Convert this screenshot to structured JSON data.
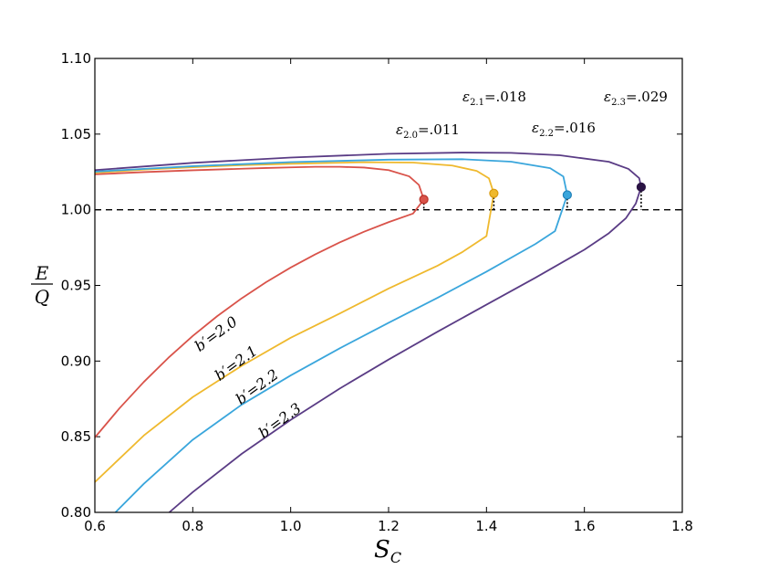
{
  "chart_data": {
    "type": "line",
    "title": "",
    "xlabel": "S",
    "xlabel_sub": "C",
    "ylabel_num": "E",
    "ylabel_den": "Q",
    "xlim": [
      0.6,
      1.8
    ],
    "ylim": [
      0.8,
      1.1
    ],
    "xticks": [
      "0.6",
      "0.8",
      "1.0",
      "1.2",
      "1.4",
      "1.6",
      "1.8"
    ],
    "yticks": [
      "0.80",
      "0.85",
      "0.90",
      "0.95",
      "1.00",
      "1.05",
      "1.10"
    ],
    "reference_line": {
      "y": 1.0,
      "style": "dashed",
      "color": "#000000"
    },
    "series": [
      {
        "name": "b′=2.0",
        "color": "#d9534a",
        "label_text": "b′=2.0",
        "eps_main": "ε",
        "eps_sub": "2.0",
        "eps_value": "=.011",
        "marker": [
          1.272,
          1.0068
        ],
        "x": [
          0.6,
          0.65,
          0.7,
          0.75,
          0.8,
          0.85,
          0.9,
          0.95,
          1.0,
          1.05,
          1.1,
          1.15,
          1.2,
          1.25,
          1.272,
          1.262,
          1.242,
          1.2,
          1.15,
          1.1,
          1.05,
          1.0,
          0.95,
          0.9,
          0.8,
          0.7,
          0.6
        ],
        "y": [
          0.8495,
          0.8687,
          0.8862,
          0.9021,
          0.9166,
          0.9297,
          0.9415,
          0.9522,
          0.9618,
          0.9705,
          0.9784,
          0.9855,
          0.9918,
          0.9975,
          1.0068,
          1.0164,
          1.0221,
          1.0262,
          1.0279,
          1.0284,
          1.0284,
          1.028,
          1.0276,
          1.0271,
          1.0261,
          1.0249,
          1.0234
        ]
      },
      {
        "name": "b′=2.1",
        "color": "#efb92e",
        "label_text": "b′=2.1",
        "eps_main": "ε",
        "eps_sub": "2.1",
        "eps_value": "=.018",
        "marker": [
          1.415,
          1.0108
        ],
        "x": [
          0.6,
          0.7,
          0.8,
          0.9,
          1.0,
          1.1,
          1.2,
          1.3,
          1.35,
          1.4,
          1.415,
          1.405,
          1.38,
          1.33,
          1.25,
          1.15,
          1.0,
          0.9,
          0.8,
          0.7,
          0.6
        ],
        "y": [
          0.82,
          0.8508,
          0.8762,
          0.8969,
          0.9154,
          0.9314,
          0.9479,
          0.963,
          0.9719,
          0.9826,
          1.0108,
          1.0208,
          1.0257,
          1.0292,
          1.0312,
          1.0314,
          1.0304,
          1.0295,
          1.0281,
          1.0265,
          1.0245
        ]
      },
      {
        "name": "b′=2.2",
        "color": "#3aa6dc",
        "label_text": "b′=2.2",
        "eps_main": "ε",
        "eps_sub": "2.2",
        "eps_value": "=.016",
        "marker": [
          1.565,
          1.0098
        ],
        "x": [
          0.642,
          0.7,
          0.8,
          0.9,
          1.0,
          1.1,
          1.2,
          1.3,
          1.4,
          1.5,
          1.54,
          1.565,
          1.557,
          1.53,
          1.45,
          1.35,
          1.2,
          1.0,
          0.8,
          0.6
        ],
        "y": [
          0.8,
          0.8189,
          0.848,
          0.8712,
          0.8905,
          0.9084,
          0.9253,
          0.9418,
          0.9591,
          0.9774,
          0.9859,
          1.0098,
          1.022,
          1.0275,
          1.0318,
          1.0334,
          1.0331,
          1.0315,
          1.0288,
          1.0252
        ]
      },
      {
        "name": "b′=2.3",
        "color": "#5a3c85",
        "label_text": "b′=2.3",
        "eps_main": "ε",
        "eps_sub": "2.3",
        "eps_value": "=.029",
        "marker": [
          1.716,
          1.015
        ],
        "x": [
          0.752,
          0.8,
          0.9,
          1.0,
          1.1,
          1.2,
          1.3,
          1.4,
          1.5,
          1.6,
          1.65,
          1.685,
          1.705,
          1.716,
          1.712,
          1.69,
          1.65,
          1.55,
          1.45,
          1.35,
          1.2,
          1.0,
          0.8,
          0.6
        ],
        "y": [
          0.8,
          0.8134,
          0.8387,
          0.8611,
          0.8818,
          0.901,
          0.9194,
          0.9373,
          0.9551,
          0.9736,
          0.9845,
          0.9945,
          1.0041,
          1.015,
          1.0209,
          1.027,
          1.0317,
          1.036,
          1.0376,
          1.0378,
          1.037,
          1.0345,
          1.031,
          1.0262
        ]
      }
    ]
  }
}
